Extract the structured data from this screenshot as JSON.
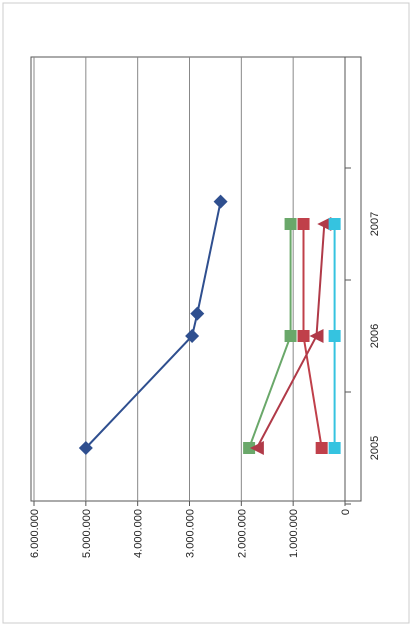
{
  "chart_data": {
    "type": "line",
    "orientation": "rotated-90-clockwise",
    "categories": [
      "2005",
      "2006",
      "2007"
    ],
    "value_ticks": [
      "0",
      "1.000.000",
      "2.000.000",
      "3.000.000",
      "4.000.000",
      "5.000.000",
      "6.000.000"
    ],
    "ylim": [
      0,
      6000000
    ],
    "grid": true,
    "legend": "none",
    "series": [
      {
        "color": "#2f4f8f",
        "marker": "diamond",
        "points": [
          {
            "x": 0,
            "y": 5000000
          },
          {
            "x": 1,
            "y": 2950000
          },
          {
            "x": 1.2,
            "y": 2850000
          },
          {
            "x": 2.2,
            "y": 2400000
          }
        ]
      },
      {
        "color": "#6aa86a",
        "marker": "square",
        "points": [
          {
            "x": 0,
            "y": 1850000
          },
          {
            "x": 1,
            "y": 1050000
          },
          {
            "x": 2,
            "y": 1050000
          }
        ]
      },
      {
        "color": "#c0404a",
        "marker": "square",
        "points": [
          {
            "x": 0,
            "y": 450000
          },
          {
            "x": 1,
            "y": 800000
          },
          {
            "x": 2,
            "y": 800000
          }
        ]
      },
      {
        "color": "#b03a48",
        "marker": "triangle",
        "points": [
          {
            "x": 0,
            "y": 1700000
          },
          {
            "x": 1,
            "y": 550000
          },
          {
            "x": 2,
            "y": 400000
          }
        ]
      },
      {
        "color": "#35c3e0",
        "marker": "square",
        "points": [
          {
            "x": 0,
            "y": 200000
          },
          {
            "x": 1,
            "y": 200000
          },
          {
            "x": 2,
            "y": 200000
          }
        ]
      }
    ]
  }
}
